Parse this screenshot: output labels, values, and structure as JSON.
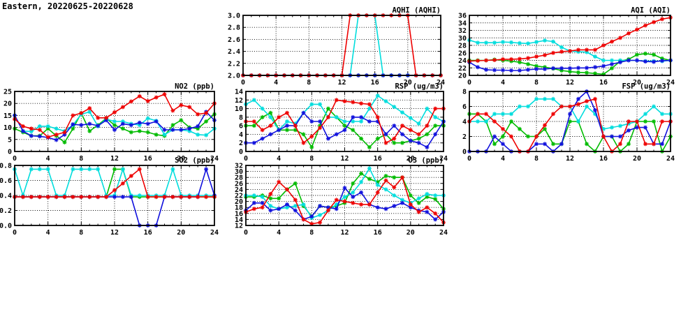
{
  "page_title": "Eastern, 20220625-20220628",
  "colors": {
    "red": "#ee0000",
    "green": "#00bb00",
    "blue": "#1111dd",
    "cyan": "#00dddd",
    "axis": "#000000",
    "grid": "#000000",
    "background": "#ffffff"
  },
  "x_axis": {
    "min": 0,
    "max": 24,
    "major_ticks": [
      0,
      4,
      8,
      12,
      16,
      20,
      24
    ],
    "minor_step": 1
  },
  "chart_data": [
    {
      "id": "aqhi",
      "type": "line",
      "title": "AQHI (AQHI)",
      "xlabel": "",
      "ylabel": "",
      "ylim": [
        2.0,
        3.0
      ],
      "ystep": 0.2,
      "ydecimals": 1,
      "grid": true,
      "legend": "none",
      "x": [
        0,
        1,
        2,
        3,
        4,
        5,
        6,
        7,
        8,
        9,
        10,
        11,
        12,
        13,
        14,
        15,
        16,
        17,
        18,
        19,
        20,
        21,
        22,
        23,
        24
      ],
      "series": [
        {
          "name": "green",
          "color": "#00bb00",
          "values": [
            2,
            2,
            2,
            2,
            2,
            2,
            2,
            2,
            2,
            2,
            2,
            2,
            2,
            2,
            2,
            2,
            2,
            2,
            2,
            2,
            2,
            2,
            2,
            2,
            2
          ]
        },
        {
          "name": "cyan",
          "color": "#00dddd",
          "values": [
            2,
            2,
            2,
            2,
            2,
            2,
            2,
            2,
            2,
            2,
            2,
            2,
            2,
            2,
            3,
            3,
            3,
            2,
            2,
            2,
            2,
            2,
            2,
            2,
            2
          ]
        },
        {
          "name": "blue",
          "color": "#1111dd",
          "values": [
            2,
            2,
            2,
            2,
            2,
            2,
            2,
            2,
            2,
            2,
            2,
            2,
            2,
            2,
            2,
            2,
            2,
            2,
            2,
            2,
            2,
            2,
            2,
            2,
            2
          ]
        },
        {
          "name": "red",
          "color": "#ee0000",
          "values": [
            2,
            2,
            2,
            2,
            2,
            2,
            2,
            2,
            2,
            2,
            2,
            2,
            2,
            3,
            3,
            3,
            3,
            3,
            3,
            3,
            3,
            2,
            2,
            2,
            2
          ]
        }
      ]
    },
    {
      "id": "aqi",
      "type": "line",
      "title": "AQI (AQI)",
      "xlabel": "",
      "ylabel": "",
      "ylim": [
        20,
        36
      ],
      "ystep": 2,
      "ydecimals": 0,
      "grid": true,
      "legend": "none",
      "x": [
        0,
        1,
        2,
        3,
        4,
        5,
        6,
        7,
        8,
        9,
        10,
        11,
        12,
        13,
        14,
        15,
        16,
        17,
        18,
        19,
        20,
        21,
        22,
        23,
        24
      ],
      "series": [
        {
          "name": "green",
          "color": "#00bb00",
          "values": [
            24,
            24,
            24,
            24.2,
            24,
            23.8,
            23.5,
            23,
            22.5,
            22.2,
            21.8,
            21.3,
            21,
            20.8,
            20.7,
            20.5,
            20.3,
            21.9,
            23.8,
            24.3,
            25.5,
            25.8,
            25.5,
            24.5,
            24
          ]
        },
        {
          "name": "cyan",
          "color": "#00dddd",
          "values": [
            29.4,
            28.7,
            28.7,
            28.7,
            28.9,
            28.8,
            28.6,
            28.5,
            28.9,
            29.3,
            29,
            27.5,
            26.5,
            26.3,
            26.2,
            25,
            24,
            24,
            24,
            24,
            24,
            23.8,
            23.8,
            23.8,
            24
          ]
        },
        {
          "name": "blue",
          "color": "#1111dd",
          "values": [
            23.5,
            22.2,
            21.5,
            21.4,
            21.4,
            21.3,
            21.3,
            21.5,
            21.7,
            21.7,
            21.9,
            21.9,
            21.9,
            22,
            22,
            22.2,
            22.5,
            23,
            23.5,
            24,
            24,
            23.7,
            23.6,
            23.9,
            24
          ]
        },
        {
          "name": "red",
          "color": "#ee0000",
          "values": [
            23.8,
            23.9,
            24,
            24.1,
            24.3,
            24.3,
            24.4,
            24.6,
            25,
            25.4,
            26,
            26.3,
            26.5,
            26.8,
            26.8,
            26.8,
            28,
            29,
            30,
            31.2,
            32.2,
            33.3,
            34.2,
            35,
            35.4
          ]
        }
      ]
    },
    {
      "id": "no2",
      "type": "line",
      "title": "NO2 (ppb)",
      "xlabel": "",
      "ylabel": "",
      "ylim": [
        0,
        25
      ],
      "ystep": 5,
      "ydecimals": 0,
      "grid": true,
      "legend": "none",
      "x": [
        0,
        1,
        2,
        3,
        4,
        5,
        6,
        7,
        8,
        9,
        10,
        11,
        12,
        13,
        14,
        15,
        16,
        17,
        18,
        19,
        20,
        21,
        22,
        23,
        24
      ],
      "series": [
        {
          "name": "green",
          "color": "#00bb00",
          "values": [
            9.5,
            8,
            6.5,
            6.5,
            9.5,
            6.5,
            3.8,
            9.5,
            16,
            8.5,
            11,
            13.8,
            11,
            9.5,
            8,
            8.5,
            8,
            7,
            6.5,
            11,
            13,
            10,
            9.5,
            12.5,
            15.5
          ]
        },
        {
          "name": "cyan",
          "color": "#00dddd",
          "values": [
            15,
            8.5,
            8.3,
            10.5,
            10.5,
            9.5,
            8.5,
            11,
            15.5,
            16.5,
            10.5,
            13.5,
            12.5,
            12.5,
            11.5,
            11,
            13.8,
            12.8,
            7,
            9,
            9,
            8.5,
            7,
            6.8,
            9.5
          ]
        },
        {
          "name": "blue",
          "color": "#1111dd",
          "values": [
            15,
            8.5,
            6.5,
            6.3,
            5.8,
            4.8,
            7,
            11.3,
            11,
            11.5,
            10.7,
            13,
            9,
            11.5,
            11,
            12,
            11.5,
            12.5,
            9,
            9,
            9,
            9.5,
            10.5,
            16.5,
            13
          ]
        },
        {
          "name": "red",
          "color": "#ee0000",
          "values": [
            13.5,
            10.5,
            9.5,
            9,
            6,
            7,
            8,
            15,
            16,
            18,
            14,
            14,
            16.3,
            18.5,
            20.8,
            23,
            21,
            22.5,
            23.8,
            17,
            19.3,
            18.5,
            15.5,
            16,
            20
          ]
        }
      ]
    },
    {
      "id": "rsp",
      "type": "line",
      "title": "RSP (ug/m3)",
      "xlabel": "",
      "ylabel": "",
      "ylim": [
        0,
        14
      ],
      "ystep": 2,
      "ydecimals": 0,
      "grid": true,
      "legend": "none",
      "x": [
        0,
        1,
        2,
        3,
        4,
        5,
        6,
        7,
        8,
        9,
        10,
        11,
        12,
        13,
        14,
        15,
        16,
        17,
        18,
        19,
        20,
        21,
        22,
        23,
        24
      ],
      "series": [
        {
          "name": "green",
          "color": "#00bb00",
          "values": [
            6,
            6,
            8,
            9,
            5,
            5,
            5,
            4,
            1,
            6,
            10,
            8,
            6,
            5,
            3,
            1,
            3,
            4,
            2,
            2,
            2.5,
            3,
            4,
            6,
            6
          ]
        },
        {
          "name": "cyan",
          "color": "#00dddd",
          "values": [
            11,
            12,
            10,
            8,
            5,
            7,
            6.5,
            9,
            11,
            11,
            8,
            8,
            7,
            7,
            7,
            10,
            13,
            11.7,
            10.4,
            9.1,
            7.8,
            6.5,
            10,
            8,
            7
          ]
        },
        {
          "name": "blue",
          "color": "#1111dd",
          "values": [
            2,
            2,
            3,
            4,
            5,
            6,
            6,
            9,
            7,
            7,
            3,
            4,
            5,
            8,
            8,
            7,
            7,
            4,
            6,
            4,
            2.5,
            2,
            1,
            4,
            7
          ]
        },
        {
          "name": "red",
          "color": "#ee0000",
          "values": [
            7,
            7,
            5,
            6,
            8,
            9,
            6,
            2,
            3.5,
            5.5,
            8,
            12,
            11.7,
            11.5,
            11.2,
            11,
            8,
            2,
            3,
            6,
            5,
            4,
            6,
            10,
            10
          ]
        }
      ]
    },
    {
      "id": "fsp",
      "type": "line",
      "title": "FSP (ug/m3)",
      "xlabel": "",
      "ylabel": "",
      "ylim": [
        0,
        8
      ],
      "ystep": 2,
      "ydecimals": 0,
      "grid": true,
      "legend": "none",
      "x": [
        0,
        1,
        2,
        3,
        4,
        5,
        6,
        7,
        8,
        9,
        10,
        11,
        12,
        13,
        14,
        15,
        16,
        17,
        18,
        19,
        20,
        21,
        22,
        23,
        24
      ],
      "series": [
        {
          "name": "green",
          "color": "#00bb00",
          "values": [
            5,
            5,
            4,
            1,
            2,
            4,
            3,
            2,
            2,
            3,
            1,
            1,
            4,
            4,
            1,
            0,
            2,
            2,
            0,
            1,
            4,
            4,
            4,
            0,
            2
          ]
        },
        {
          "name": "cyan",
          "color": "#00dddd",
          "values": [
            4,
            4,
            4,
            5,
            5,
            5,
            6,
            6,
            7,
            7,
            7,
            6,
            6,
            4,
            6,
            5,
            3,
            3.2,
            3.4,
            3.7,
            4,
            5,
            6,
            5,
            5
          ]
        },
        {
          "name": "blue",
          "color": "#1111dd",
          "values": [
            0,
            0,
            0,
            2,
            1,
            0,
            0,
            0,
            1,
            1,
            0,
            1,
            5,
            7,
            8,
            5.5,
            2,
            2,
            2,
            2.8,
            3.2,
            3.2,
            1,
            1,
            4
          ]
        },
        {
          "name": "red",
          "color": "#ee0000",
          "values": [
            4,
            5,
            5,
            4,
            3,
            2,
            0,
            0,
            2,
            3.5,
            5,
            6,
            6,
            6.3,
            6.7,
            7,
            2,
            0,
            1,
            4,
            4,
            1,
            1,
            4,
            4
          ]
        }
      ]
    },
    {
      "id": "so2",
      "type": "line",
      "title": "SO2 (ppb)",
      "xlabel": "",
      "ylabel": "",
      "ylim": [
        0.0,
        0.8
      ],
      "ystep": 0.2,
      "ydecimals": 1,
      "grid": true,
      "legend": "none",
      "x": [
        0,
        1,
        2,
        3,
        4,
        5,
        6,
        7,
        8,
        9,
        10,
        11,
        12,
        13,
        14,
        15,
        16,
        17,
        18,
        19,
        20,
        21,
        22,
        23,
        24
      ],
      "series": [
        {
          "name": "green",
          "color": "#00bb00",
          "values": [
            0.38,
            0.38,
            0.38,
            0.38,
            0.38,
            0.38,
            0.38,
            0.38,
            0.38,
            0.38,
            0.38,
            0.38,
            0.75,
            0.75,
            0.38,
            0.38,
            0.38,
            0.38,
            0.38,
            0.38,
            0.38,
            0.38,
            0.38,
            0.38,
            0.38
          ]
        },
        {
          "name": "cyan",
          "color": "#00dddd",
          "values": [
            0.75,
            0.4,
            0.75,
            0.75,
            0.75,
            0.4,
            0.4,
            0.75,
            0.75,
            0.75,
            0.75,
            0.4,
            0.4,
            0.75,
            0.4,
            0.4,
            0.4,
            0.4,
            0.4,
            0.75,
            0.4,
            0.4,
            0.4,
            0.4,
            0.4
          ]
        },
        {
          "name": "blue",
          "color": "#1111dd",
          "values": [
            0.38,
            0.38,
            0.38,
            0.38,
            0.38,
            0.38,
            0.38,
            0.38,
            0.38,
            0.38,
            0.38,
            0.38,
            0.38,
            0.38,
            0.38,
            0,
            0,
            0,
            0.38,
            0.38,
            0.38,
            0.38,
            0.38,
            0.75,
            0.4
          ]
        },
        {
          "name": "red",
          "color": "#ee0000",
          "values": [
            0.38,
            0.38,
            0.38,
            0.38,
            0.38,
            0.38,
            0.38,
            0.38,
            0.38,
            0.38,
            0.38,
            0.38,
            0.47,
            0.56,
            0.66,
            0.75,
            0.38,
            0.38,
            0.38,
            0.38,
            0.38,
            0.38,
            0.38,
            0.38,
            0.38
          ]
        }
      ]
    },
    {
      "id": "o3",
      "type": "line",
      "title": "O3 (ppb)",
      "xlabel": "",
      "ylabel": "",
      "ylim": [
        12,
        32
      ],
      "ystep": 2,
      "ydecimals": 0,
      "grid": true,
      "legend": "none",
      "x": [
        0,
        1,
        2,
        3,
        4,
        5,
        6,
        7,
        8,
        9,
        10,
        11,
        12,
        13,
        14,
        15,
        16,
        17,
        18,
        19,
        20,
        21,
        22,
        23,
        24
      ],
      "series": [
        {
          "name": "green",
          "color": "#00bb00",
          "values": [
            21.5,
            21.5,
            22,
            21,
            21,
            24,
            26,
            18.5,
            15,
            18.5,
            18,
            18.5,
            19.5,
            26,
            29.3,
            27.5,
            26.5,
            28.5,
            28,
            28,
            22,
            19.5,
            21.5,
            20.8,
            17.5
          ]
        },
        {
          "name": "cyan",
          "color": "#00dddd",
          "values": [
            22,
            22,
            21.5,
            18.5,
            17.5,
            18,
            18.5,
            19,
            14.5,
            15.5,
            17,
            19,
            21.5,
            23,
            26.5,
            31,
            25.5,
            24,
            22,
            20.5,
            19.5,
            21,
            22.5,
            22,
            22
          ]
        },
        {
          "name": "blue",
          "color": "#1111dd",
          "values": [
            17,
            19.5,
            19.5,
            17,
            17.5,
            19,
            17,
            14,
            15,
            18.5,
            18,
            17.5,
            24.5,
            21.5,
            23,
            19,
            18,
            17.5,
            18.5,
            19.5,
            18,
            17,
            16.5,
            14,
            16.5
          ]
        },
        {
          "name": "red",
          "color": "#ee0000",
          "values": [
            16.5,
            17.5,
            18,
            22.5,
            26.5,
            24,
            20.5,
            14,
            12.5,
            13,
            17,
            20.5,
            20,
            19.5,
            19,
            19,
            23,
            27,
            24.7,
            28,
            19,
            16.5,
            18,
            16,
            13
          ]
        }
      ]
    }
  ]
}
